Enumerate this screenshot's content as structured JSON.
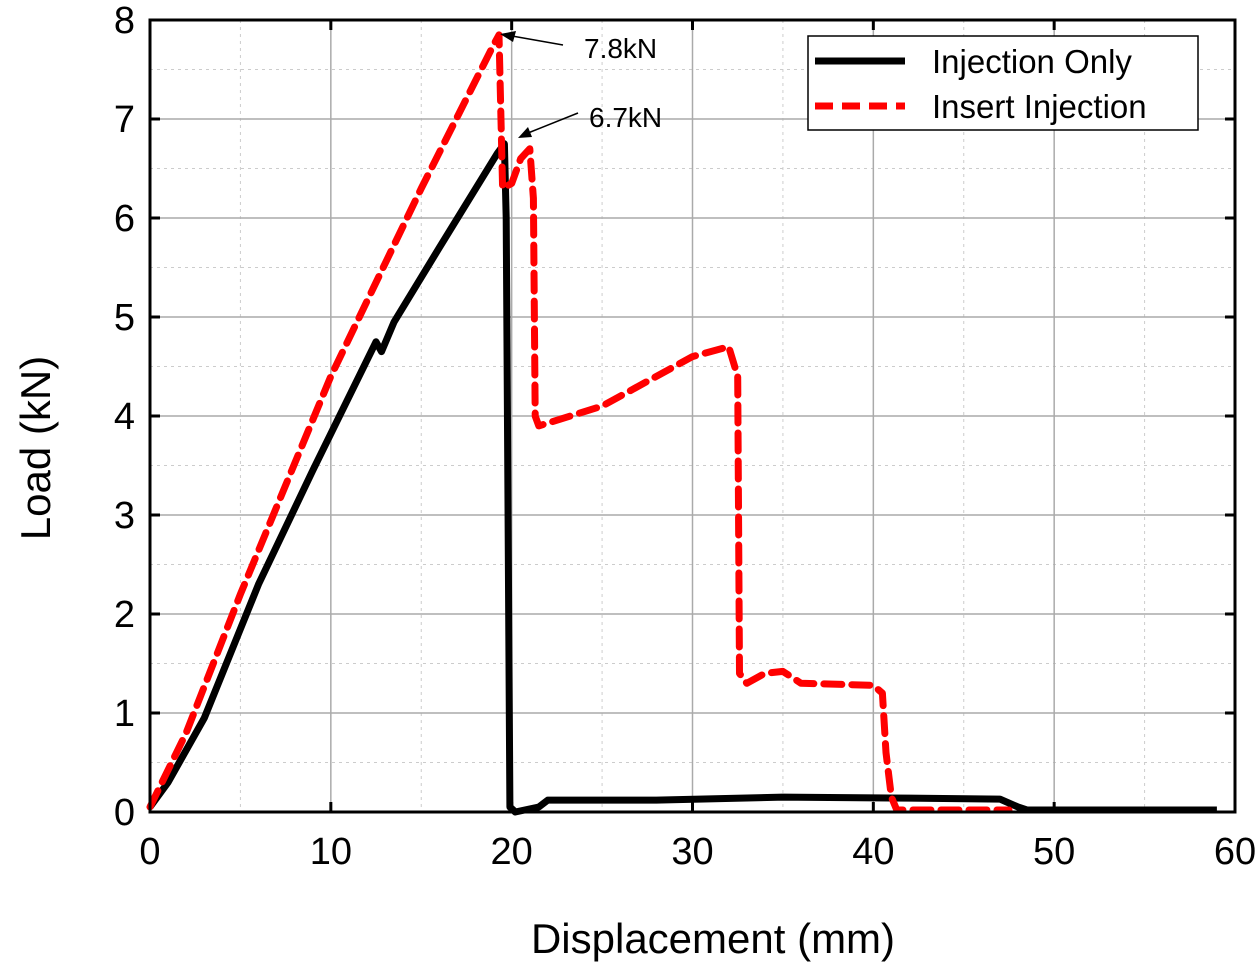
{
  "chart_data": {
    "type": "line",
    "title": "",
    "xlabel": "Displacement (mm)",
    "ylabel": "Load (kN)",
    "xlim": [
      0,
      60
    ],
    "ylim": [
      0,
      8
    ],
    "xticks": [
      "0",
      "10",
      "20",
      "30",
      "40",
      "50",
      "60"
    ],
    "yticks": [
      "0",
      "1",
      "2",
      "3",
      "4",
      "5",
      "6",
      "7",
      "8"
    ],
    "grid": true,
    "legend_position": "top-right",
    "series": [
      {
        "name": "Injection Only",
        "color": "#000000",
        "style": "solid",
        "x": [
          0,
          1,
          3,
          6,
          9,
          12.5,
          12.8,
          13.5,
          16,
          19.2,
          19.6,
          19.7,
          19.9,
          20.2,
          21.5,
          22,
          28,
          35,
          42,
          47,
          48,
          48.5,
          59
        ],
        "y": [
          0.05,
          0.3,
          0.95,
          2.3,
          3.45,
          4.75,
          4.65,
          4.95,
          5.7,
          6.65,
          6.75,
          6.0,
          0.05,
          0.0,
          0.05,
          0.12,
          0.12,
          0.15,
          0.14,
          0.13,
          0.05,
          0.02,
          0.02
        ]
      },
      {
        "name": "Insert Injection",
        "color": "#ff0000",
        "style": "dashed",
        "x": [
          0,
          2,
          5,
          10,
          15,
          19,
          19.3,
          19.5,
          20,
          20.5,
          21,
          21.2,
          21.3,
          21.5,
          25,
          30,
          32,
          32.5,
          32.6,
          33,
          34,
          35,
          36,
          40,
          40.5,
          40.7,
          41,
          41.3,
          47.5
        ],
        "y": [
          0.05,
          0.8,
          2.2,
          4.4,
          6.3,
          7.75,
          7.85,
          6.3,
          6.35,
          6.6,
          6.7,
          6.2,
          4.0,
          3.9,
          4.1,
          4.6,
          4.7,
          4.4,
          1.4,
          1.3,
          1.4,
          1.42,
          1.3,
          1.28,
          1.2,
          0.6,
          0.15,
          0.02,
          0.02
        ]
      }
    ],
    "annotations": [
      {
        "text": "7.8kN",
        "x": 19.3,
        "y": 7.8
      },
      {
        "text": "6.7kN",
        "x": 20.2,
        "y": 6.75
      }
    ]
  }
}
